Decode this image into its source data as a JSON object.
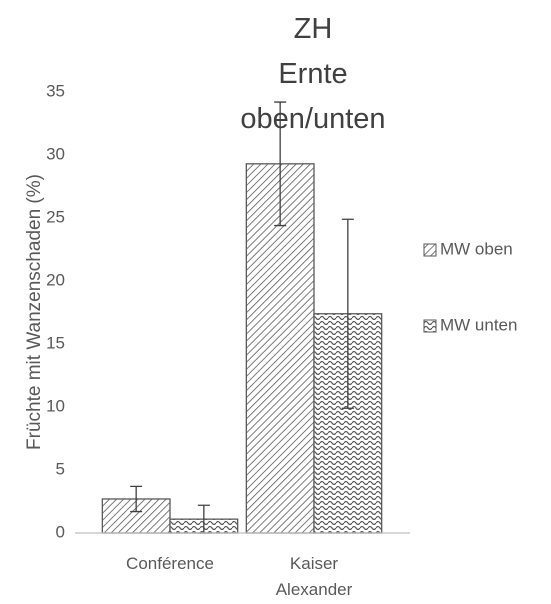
{
  "chart_data": {
    "type": "bar",
    "title": "ZH Ernte oben/unten",
    "y_label": "Früchte mit Wanzenschaden (%)",
    "categories": [
      "Conférence",
      "Kaiser Alexander"
    ],
    "series": [
      {
        "name": "MW oben",
        "color": "#595959",
        "pattern": "diagonal",
        "values": [
          2.7,
          29.3
        ],
        "errors": [
          1.0,
          4.9
        ]
      },
      {
        "name": "MW unten",
        "color": "#595959",
        "pattern": "wave",
        "values": [
          1.1,
          17.4
        ],
        "errors": [
          1.1,
          7.5
        ]
      }
    ],
    "ylim": [
      0,
      35
    ],
    "yticks": [
      0,
      5,
      10,
      15,
      20,
      25,
      30,
      35
    ],
    "grid": false,
    "legend": "right"
  }
}
